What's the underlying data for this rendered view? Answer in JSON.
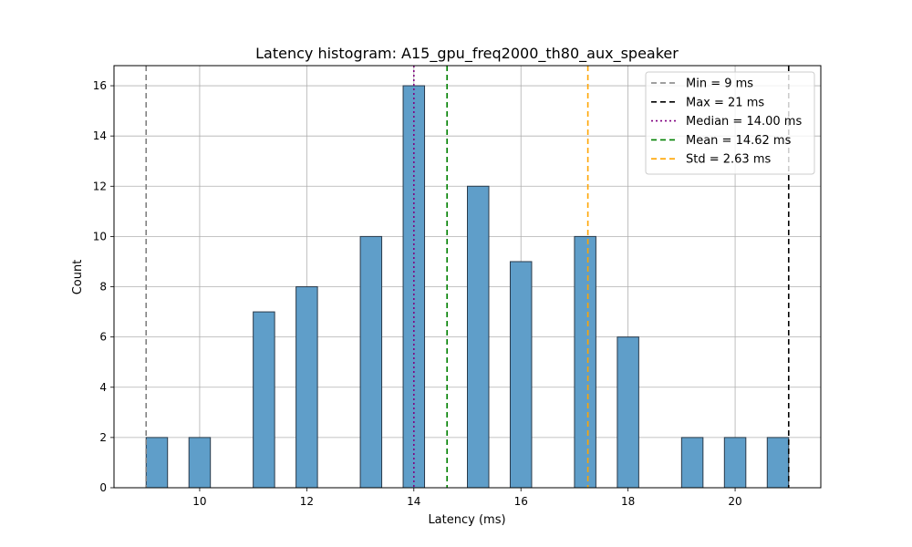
{
  "chart_data": {
    "type": "bar",
    "title": "Latency histogram: A15_gpu_freq2000_th80_aux_speaker",
    "xlabel": "Latency (ms)",
    "ylabel": "Count",
    "xlim": [
      8.4,
      21.6
    ],
    "ylim": [
      0,
      16.8
    ],
    "xticks": [
      10,
      12,
      14,
      16,
      18,
      20
    ],
    "yticks": [
      0,
      2,
      4,
      6,
      8,
      10,
      12,
      14,
      16
    ],
    "grid": true,
    "bin_width": 0.4,
    "bins": [
      {
        "x": 9.0,
        "count": 2
      },
      {
        "x": 9.8,
        "count": 2
      },
      {
        "x": 11.0,
        "count": 7
      },
      {
        "x": 11.8,
        "count": 8
      },
      {
        "x": 13.0,
        "count": 10
      },
      {
        "x": 13.8,
        "count": 16
      },
      {
        "x": 15.0,
        "count": 12
      },
      {
        "x": 15.8,
        "count": 9
      },
      {
        "x": 17.0,
        "count": 10
      },
      {
        "x": 17.8,
        "count": 6
      },
      {
        "x": 19.0,
        "count": 2
      },
      {
        "x": 19.8,
        "count": 2
      },
      {
        "x": 20.6,
        "count": 2
      }
    ],
    "bar_color": "#5f9ec9",
    "reference_lines": [
      {
        "label": "Min = 9 ms",
        "x": 9.0,
        "color": "#808080",
        "style": "dashed"
      },
      {
        "label": "Max = 21 ms",
        "x": 21.0,
        "color": "#000000",
        "style": "dashed"
      },
      {
        "label": "Median = 14.00 ms",
        "x": 14.0,
        "color": "#800080",
        "style": "dotted"
      },
      {
        "label": "Mean = 14.62 ms",
        "x": 14.62,
        "color": "#008000",
        "style": "dashed"
      },
      {
        "label": "Std = 2.63 ms",
        "x": 17.25,
        "color": "#ffa500",
        "style": "dashed"
      }
    ],
    "legend_position": "top-right"
  }
}
